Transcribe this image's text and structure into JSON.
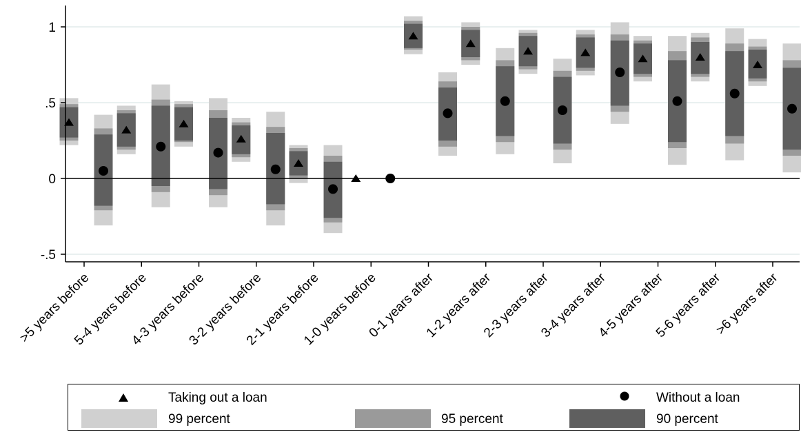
{
  "chart_data": {
    "type": "scatter",
    "title": "",
    "xlabel": "",
    "ylabel": "",
    "ylim": [
      -0.55,
      1.15
    ],
    "yticks": [
      -0.5,
      0,
      0.5,
      1
    ],
    "ytick_labels": [
      "-.5",
      "0",
      ".5",
      "1"
    ],
    "categories": [
      ">5 years before",
      "5-4 years before",
      "4-3 years before",
      "3-2 years before",
      "2-1 years before",
      "1-0 years before",
      "0-1 years after",
      "1-2 years after",
      "2-3 years after",
      "3-4 years after",
      "4-5 years after",
      "5-6 years after",
      ">6 years after"
    ],
    "series": [
      {
        "name": "Taking out a loan",
        "marker": "triangle",
        "values": [
          0.37,
          0.32,
          0.36,
          0.26,
          0.1,
          0.0,
          0.94,
          0.89,
          0.84,
          0.83,
          0.79,
          0.8,
          0.75
        ],
        "ci90": [
          [
            0.27,
            0.47
          ],
          [
            0.21,
            0.43
          ],
          [
            0.25,
            0.47
          ],
          [
            0.16,
            0.35
          ],
          [
            0.02,
            0.18
          ],
          null,
          [
            0.86,
            1.02
          ],
          [
            0.8,
            0.98
          ],
          [
            0.74,
            0.94
          ],
          [
            0.73,
            0.93
          ],
          [
            0.69,
            0.89
          ],
          [
            0.69,
            0.9
          ],
          [
            0.66,
            0.85
          ]
        ],
        "ci95": [
          [
            0.25,
            0.49
          ],
          [
            0.19,
            0.45
          ],
          [
            0.24,
            0.49
          ],
          [
            0.14,
            0.37
          ],
          [
            0.0,
            0.2
          ],
          null,
          [
            0.85,
            1.04
          ],
          [
            0.78,
            1.0
          ],
          [
            0.72,
            0.96
          ],
          [
            0.71,
            0.95
          ],
          [
            0.67,
            0.91
          ],
          [
            0.67,
            0.93
          ],
          [
            0.64,
            0.87
          ]
        ],
        "ci99": [
          [
            0.22,
            0.53
          ],
          [
            0.16,
            0.48
          ],
          [
            0.21,
            0.51
          ],
          [
            0.11,
            0.4
          ],
          [
            -0.03,
            0.22
          ],
          null,
          [
            0.82,
            1.07
          ],
          [
            0.75,
            1.03
          ],
          [
            0.69,
            0.98
          ],
          [
            0.68,
            0.98
          ],
          [
            0.64,
            0.94
          ],
          [
            0.64,
            0.96
          ],
          [
            0.61,
            0.92
          ]
        ]
      },
      {
        "name": "Without a loan",
        "marker": "circle",
        "values": [
          0.05,
          0.21,
          0.17,
          0.06,
          -0.07,
          0.0,
          0.43,
          0.51,
          0.45,
          0.7,
          0.51,
          0.56,
          0.46
        ],
        "ci90": [
          [
            -0.18,
            0.29
          ],
          [
            -0.05,
            0.48
          ],
          [
            -0.07,
            0.4
          ],
          [
            -0.17,
            0.3
          ],
          [
            -0.26,
            0.11
          ],
          null,
          [
            0.25,
            0.6
          ],
          [
            0.28,
            0.74
          ],
          [
            0.23,
            0.67
          ],
          [
            0.48,
            0.91
          ],
          [
            0.24,
            0.78
          ],
          [
            0.28,
            0.84
          ],
          [
            0.19,
            0.73
          ]
        ],
        "ci95": [
          [
            -0.21,
            0.33
          ],
          [
            -0.09,
            0.52
          ],
          [
            -0.11,
            0.45
          ],
          [
            -0.21,
            0.34
          ],
          [
            -0.29,
            0.15
          ],
          null,
          [
            0.21,
            0.64
          ],
          [
            0.24,
            0.78
          ],
          [
            0.19,
            0.71
          ],
          [
            0.44,
            0.95
          ],
          [
            0.2,
            0.84
          ],
          [
            0.23,
            0.89
          ],
          [
            0.15,
            0.78
          ]
        ],
        "ci99": [
          [
            -0.31,
            0.42
          ],
          [
            -0.19,
            0.62
          ],
          [
            -0.19,
            0.53
          ],
          [
            -0.31,
            0.44
          ],
          [
            -0.36,
            0.22
          ],
          null,
          [
            0.15,
            0.7
          ],
          [
            0.16,
            0.86
          ],
          [
            0.1,
            0.79
          ],
          [
            0.36,
            1.03
          ],
          [
            0.09,
            0.94
          ],
          [
            0.12,
            0.99
          ],
          [
            0.04,
            0.89
          ]
        ]
      }
    ],
    "legend": {
      "position": "bottom",
      "entries": [
        "Taking out a loan",
        "Without a loan",
        "99 percent",
        "95 percent",
        "90 percent"
      ]
    },
    "colors": {
      "ci99": "#d0d0d0",
      "ci95": "#9a9a9a",
      "ci90": "#5f5f5f",
      "marker": "#000000",
      "grid": "#e2ecec",
      "zero_line": "#000000"
    },
    "grid": true
  },
  "legend": {
    "taking_loan": "Taking out a loan",
    "without_loan": "Without a loan",
    "p99": "99 percent",
    "p95": "95 percent",
    "p90": "90 percent"
  }
}
